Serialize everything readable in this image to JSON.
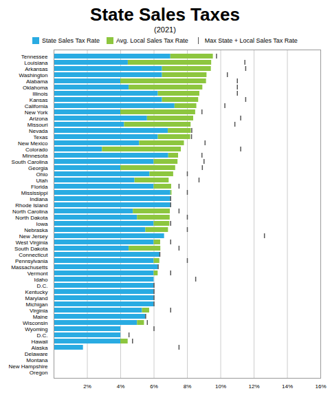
{
  "chart_data": {
    "type": "bar",
    "orientation": "horizontal",
    "stacked": true,
    "title": "State Sales Taxes",
    "subtitle": "(2021)",
    "categories": [
      "Tennessee",
      "Louisiana",
      "Arkansas",
      "Washington",
      "Alabama",
      "Oklahoma",
      "Illinois",
      "Kansas",
      "California",
      "New York",
      "Arizona",
      "Missouri",
      "Nevada",
      "Texas",
      "New Mexico",
      "Colorado",
      "Minnesota",
      "South Carolina",
      "Georgia",
      "Ohio",
      "Utah",
      "Florida",
      "Mississippi",
      "Indiana",
      "Rhode Island",
      "North Carolina",
      "North Dakota",
      "Iowa",
      "Nebraska",
      "New Jersey",
      "West Virginia",
      "South Dakota",
      "Connecticut",
      "Pennsylvania",
      "Massachusetts",
      "Vermont",
      "Idaho",
      "D.C.",
      "Kentucky",
      "Maryland",
      "Michigan",
      "Virginia",
      "Maine",
      "Wisconsin",
      "Wyoming",
      "D.C.",
      "Hawaii",
      "Alaska",
      "Delaware",
      "Montana",
      "New Hampshire",
      "Oregon"
    ],
    "series": [
      {
        "name": "State Sales Tax Rate",
        "color": "#29ABE2",
        "values": [
          7.0,
          4.45,
          6.5,
          6.5,
          4.0,
          4.5,
          6.25,
          6.5,
          7.25,
          4.0,
          5.6,
          4.225,
          6.85,
          6.25,
          5.125,
          2.9,
          6.875,
          6.0,
          4.0,
          5.75,
          4.85,
          6.0,
          7.0,
          7.0,
          7.0,
          4.75,
          5.0,
          6.0,
          5.5,
          6.625,
          6.0,
          4.5,
          6.35,
          6.0,
          6.25,
          6.0,
          6.0,
          6.0,
          6.0,
          6.0,
          6.0,
          5.3,
          5.5,
          5.0,
          4.0,
          4.0,
          4.0,
          1.76,
          0.0,
          0.0,
          0.0,
          0.0
        ]
      },
      {
        "name": "Avg. Local Sales Tax Rate",
        "color": "#8DC63F",
        "values": [
          2.55,
          5.0,
          2.93,
          2.67,
          5.14,
          4.42,
          2.49,
          2.17,
          1.31,
          4.49,
          2.77,
          3.99,
          1.38,
          1.94,
          2.69,
          4.73,
          0.59,
          1.43,
          3.29,
          1.42,
          2.05,
          1.05,
          0.07,
          0.0,
          0.0,
          2.22,
          1.96,
          0.94,
          1.36,
          0.0,
          0.39,
          1.9,
          0.0,
          0.34,
          0.0,
          0.24,
          0.0,
          0.0,
          0.0,
          0.0,
          0.0,
          0.43,
          0.0,
          0.42,
          0.0,
          0.0,
          0.44,
          0.0,
          0.0,
          0.0,
          0.0,
          0.0
        ]
      },
      {
        "name": "Max State + Local Sales Tax Rate",
        "color": "#555555",
        "type": "tick",
        "values": [
          9.75,
          11.45,
          11.5,
          10.4,
          11.0,
          11.0,
          11.0,
          11.5,
          10.25,
          8.875,
          11.2,
          10.85,
          8.265,
          8.25,
          9.0625,
          11.2,
          8.875,
          9.0,
          8.9,
          8.0,
          8.7,
          7.5,
          8.0,
          7.0,
          7.0,
          7.5,
          8.0,
          7.0,
          8.0,
          12.625,
          7.0,
          7.5,
          6.35,
          8.0,
          6.25,
          7.0,
          8.5,
          6.0,
          6.0,
          6.0,
          6.0,
          7.0,
          5.5,
          5.6,
          6.0,
          4.5,
          4.712,
          7.5,
          0.0,
          0.0,
          0.0,
          0.0
        ]
      }
    ],
    "xlim": [
      0,
      16
    ],
    "xticks": [
      {
        "value": 2,
        "label": "2%"
      },
      {
        "value": 4,
        "label": "4%"
      },
      {
        "value": 6,
        "label": "6%"
      },
      {
        "value": 8,
        "label": "8%"
      },
      {
        "value": 10,
        "label": "10%"
      },
      {
        "value": 12,
        "label": "12%"
      },
      {
        "value": 14,
        "label": "14%"
      },
      {
        "value": 16,
        "label": "16%"
      }
    ],
    "grid": true,
    "legend": "top"
  }
}
